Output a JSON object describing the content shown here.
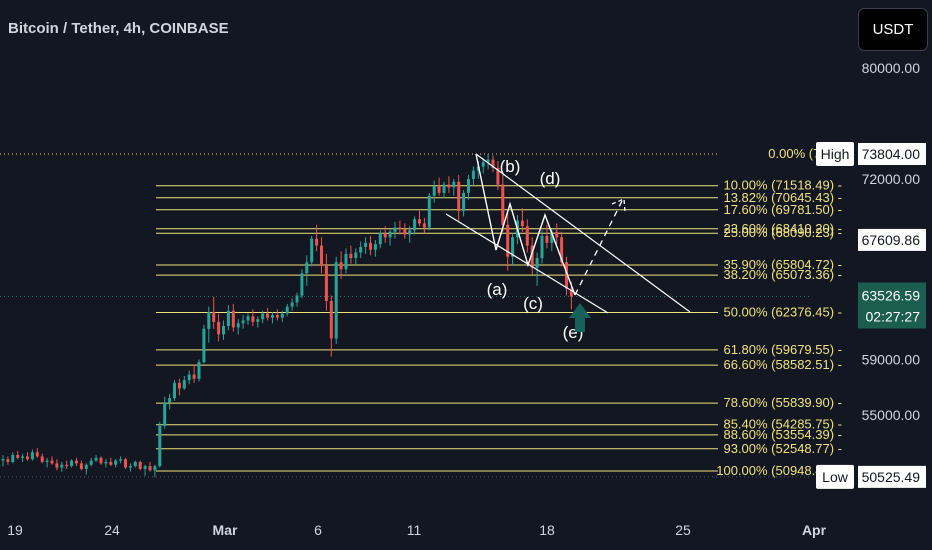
{
  "header": {
    "title": "Bitcoin / Tether, 4h, COINBASE",
    "currency_button": "USDT"
  },
  "chart_data": {
    "type": "candlestick",
    "title": "Bitcoin / Tether, 4h, COINBASE",
    "x_ticks": [
      "19",
      "24",
      "Mar",
      "6",
      "11",
      "18",
      "25",
      "Apr"
    ],
    "y_ticks": [
      80000,
      72000,
      59000,
      55000
    ],
    "y_tick_labels": [
      "80000.00",
      "72000.00",
      "59000.00",
      "55000.00"
    ],
    "ylim": [
      50000,
      82000
    ],
    "fib_levels": [
      {
        "label": "0.00% (7380",
        "value": 73804
      },
      {
        "label": "10.00% (71518.49)",
        "value": 71518.49
      },
      {
        "label": "13.82% (70645.43)",
        "value": 70645.43
      },
      {
        "label": "17.60% (69781.50)",
        "value": 69781.5
      },
      {
        "label": "23.60% (68410.20)",
        "value": 68410.2
      },
      {
        "label": "25.00% (68090.23)",
        "value": 68090.23
      },
      {
        "label": "35.90% (65804.72)",
        "value": 65804.72
      },
      {
        "label": "38.20% (65073.36)",
        "value": 65073.36
      },
      {
        "label": "50.00% (62376.45)",
        "value": 62376.45
      },
      {
        "label": "61.80% (59679.55)",
        "value": 59679.55
      },
      {
        "label": "66.60% (58582.51)",
        "value": 58582.51
      },
      {
        "label": "78.60% (55839.90)",
        "value": 55839.9
      },
      {
        "label": "85.40% (54285.75)",
        "value": 54285.75
      },
      {
        "label": "88.60% (53554.39)",
        "value": 53554.39
      },
      {
        "label": "93.00% (52548.77)",
        "value": 52548.77
      },
      {
        "label": "100.00% (50948.45)",
        "value": 50948.45
      }
    ],
    "price_labels": [
      {
        "tag": "High",
        "value": 73804,
        "text": "73804.00",
        "style": "white"
      },
      {
        "tag": "",
        "value": 67609.86,
        "text": "67609.86",
        "style": "white"
      },
      {
        "tag": "",
        "value": 63526.59,
        "text": "63526.59",
        "sub": "02:27:27",
        "style": "green"
      },
      {
        "tag": "Low",
        "value": 50525.49,
        "text": "50525.49",
        "style": "white"
      }
    ],
    "wave_labels": [
      "(a)",
      "(b)",
      "(c)",
      "(d)",
      "(e)"
    ],
    "current_price": 63526.59,
    "countdown": "02:27:27",
    "high": 73804,
    "low": 50525.49,
    "candles": [
      [
        51700,
        52100,
        51300,
        51800
      ],
      [
        51800,
        52000,
        51400,
        51600
      ],
      [
        51600,
        52300,
        51500,
        52100
      ],
      [
        52100,
        52400,
        51800,
        51900
      ],
      [
        51900,
        52200,
        51600,
        52000
      ],
      [
        52000,
        52300,
        51700,
        51800
      ],
      [
        51800,
        52500,
        51700,
        52300
      ],
      [
        52300,
        52600,
        51900,
        52000
      ],
      [
        52000,
        52200,
        51500,
        51600
      ],
      [
        51600,
        51900,
        51200,
        51700
      ],
      [
        51700,
        52000,
        51400,
        51500
      ],
      [
        51500,
        51800,
        51000,
        51200
      ],
      [
        51200,
        51600,
        50900,
        51400
      ],
      [
        51400,
        51700,
        51100,
        51300
      ],
      [
        51300,
        51800,
        51200,
        51700
      ],
      [
        51700,
        51900,
        51300,
        51500
      ],
      [
        51500,
        51700,
        51000,
        51100
      ],
      [
        51100,
        51500,
        50700,
        51400
      ],
      [
        51400,
        51900,
        51300,
        51700
      ],
      [
        51700,
        52100,
        51600,
        51900
      ],
      [
        51900,
        52000,
        51400,
        51500
      ],
      [
        51500,
        51800,
        51200,
        51600
      ],
      [
        51600,
        51900,
        51300,
        51400
      ],
      [
        51400,
        51800,
        51200,
        51700
      ],
      [
        51700,
        52000,
        51500,
        51800
      ],
      [
        51800,
        51900,
        51100,
        51200
      ],
      [
        51200,
        51500,
        50900,
        51300
      ],
      [
        51300,
        51700,
        51200,
        51600
      ],
      [
        51600,
        51700,
        51000,
        51100
      ],
      [
        51100,
        51400,
        50600,
        51300
      ],
      [
        51300,
        51600,
        50900,
        51000
      ],
      [
        51000,
        51400,
        50500,
        51300
      ],
      [
        51300,
        54500,
        51200,
        54200
      ],
      [
        54200,
        56300,
        54000,
        55900
      ],
      [
        55900,
        56500,
        55400,
        56200
      ],
      [
        56200,
        57500,
        56000,
        57300
      ],
      [
        57300,
        57600,
        56400,
        56900
      ],
      [
        56900,
        57800,
        56800,
        57500
      ],
      [
        57500,
        58200,
        57200,
        57900
      ],
      [
        57900,
        58600,
        57300,
        57600
      ],
      [
        57600,
        59000,
        57400,
        58800
      ],
      [
        58800,
        61500,
        58700,
        61200
      ],
      [
        61200,
        62800,
        60200,
        62400
      ],
      [
        62400,
        63500,
        61200,
        61700
      ],
      [
        61700,
        62300,
        60300,
        60800
      ],
      [
        60800,
        61800,
        60400,
        61400
      ],
      [
        61400,
        62900,
        61100,
        62500
      ],
      [
        62500,
        63000,
        61000,
        61300
      ],
      [
        61300,
        61900,
        60800,
        61600
      ],
      [
        61600,
        62200,
        61200,
        61800
      ],
      [
        61800,
        62300,
        61500,
        62100
      ],
      [
        62100,
        62600,
        61400,
        61700
      ],
      [
        61700,
        62100,
        61300,
        61900
      ],
      [
        61900,
        62500,
        61600,
        62300
      ],
      [
        62300,
        62700,
        61800,
        62000
      ],
      [
        62000,
        62400,
        61600,
        62200
      ],
      [
        62200,
        62600,
        61800,
        62000
      ],
      [
        62000,
        62500,
        61700,
        62300
      ],
      [
        62300,
        63000,
        62100,
        62800
      ],
      [
        62800,
        63400,
        62500,
        63100
      ],
      [
        63100,
        63800,
        62800,
        63600
      ],
      [
        63600,
        65500,
        63400,
        65200
      ],
      [
        65200,
        66500,
        64300,
        66000
      ],
      [
        66000,
        67900,
        65700,
        67700
      ],
      [
        67700,
        68700,
        66800,
        67200
      ],
      [
        67200,
        67800,
        65200,
        65800
      ],
      [
        65800,
        66600,
        62500,
        63200
      ],
      [
        63200,
        63600,
        59200,
        60500
      ],
      [
        60500,
        66400,
        60100,
        66000
      ],
      [
        66000,
        66800,
        64800,
        65500
      ],
      [
        65500,
        67000,
        65200,
        66600
      ],
      [
        66600,
        67200,
        65900,
        66300
      ],
      [
        66300,
        67000,
        65800,
        66700
      ],
      [
        66700,
        67500,
        66300,
        67100
      ],
      [
        67100,
        67800,
        66600,
        67400
      ],
      [
        67400,
        67900,
        66500,
        66900
      ],
      [
        66900,
        67600,
        66400,
        67300
      ],
      [
        67300,
        68300,
        67000,
        68100
      ],
      [
        68100,
        68600,
        67400,
        67800
      ],
      [
        67800,
        68400,
        67200,
        68200
      ],
      [
        68200,
        68900,
        67700,
        68500
      ],
      [
        68500,
        69000,
        68000,
        68400
      ],
      [
        68400,
        68800,
        67700,
        68000
      ],
      [
        68000,
        68600,
        67400,
        68300
      ],
      [
        68300,
        69300,
        68000,
        69100
      ],
      [
        69100,
        69700,
        68600,
        68800
      ],
      [
        68800,
        69200,
        68100,
        68500
      ],
      [
        68500,
        71000,
        68300,
        70800
      ],
      [
        70800,
        71900,
        70300,
        71500
      ],
      [
        71500,
        72100,
        70800,
        71000
      ],
      [
        71000,
        71800,
        70600,
        71600
      ],
      [
        71600,
        72200,
        71000,
        71400
      ],
      [
        71400,
        72000,
        70800,
        71800
      ],
      [
        71800,
        72300,
        69000,
        69700
      ],
      [
        69700,
        71200,
        69300,
        71000
      ],
      [
        71000,
        72300,
        70500,
        72000
      ],
      [
        72000,
        72900,
        71500,
        72600
      ],
      [
        72600,
        73300,
        72000,
        72900
      ],
      [
        72900,
        73500,
        72400,
        73200
      ],
      [
        73200,
        73804,
        72700,
        73400
      ],
      [
        73400,
        73700,
        72500,
        72800
      ],
      [
        72800,
        73300,
        71200,
        71600
      ],
      [
        71600,
        72300,
        68200,
        68700
      ],
      [
        68700,
        69700,
        65400,
        66400
      ],
      [
        66400,
        68100,
        65800,
        67800
      ],
      [
        67800,
        69400,
        67300,
        69000
      ],
      [
        69000,
        69900,
        68200,
        68600
      ],
      [
        68600,
        69100,
        66700,
        67200
      ],
      [
        67200,
        67800,
        65100,
        65600
      ],
      [
        65600,
        66700,
        64300,
        66300
      ],
      [
        66300,
        68300,
        65900,
        67900
      ],
      [
        67900,
        68700,
        67000,
        67400
      ],
      [
        67400,
        68400,
        66800,
        68200
      ],
      [
        68200,
        68800,
        67300,
        67800
      ],
      [
        67800,
        68200,
        65700,
        66000
      ],
      [
        66000,
        66400,
        63600,
        64100
      ],
      [
        64100,
        64600,
        62600,
        63526.59
      ]
    ],
    "trendlines": "descending channel with dashed projection arrow",
    "grid": false
  }
}
